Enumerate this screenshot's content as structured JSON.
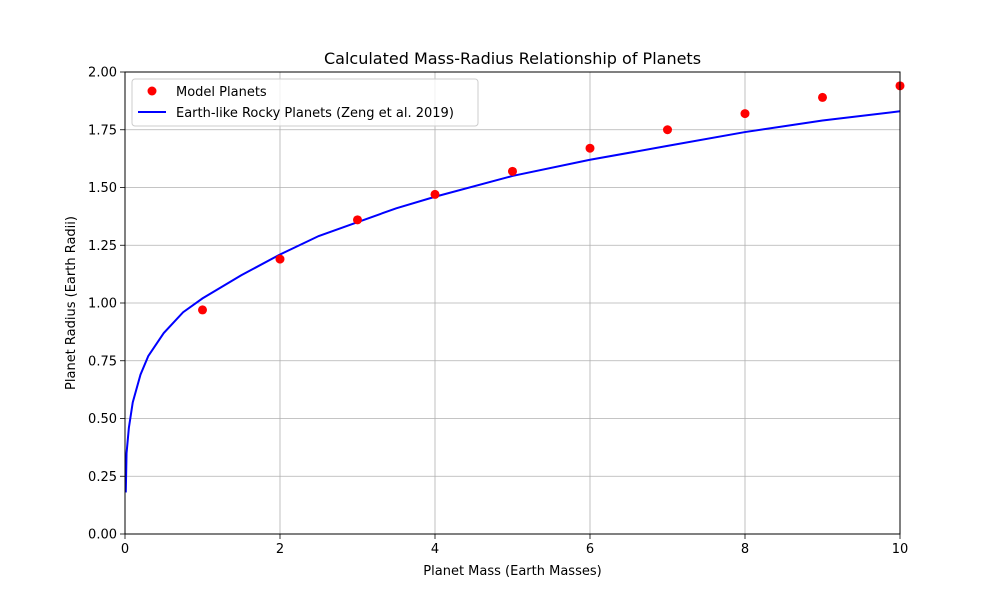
{
  "chart_data": {
    "type": "scatter",
    "title": "Calculated Mass-Radius Relationship of Planets",
    "xlabel": "Planet Mass (Earth Masses)",
    "ylabel": "Planet Radius (Earth Radii)",
    "xlim": [
      0,
      10
    ],
    "ylim": [
      0,
      2
    ],
    "xticks": [
      0,
      2,
      4,
      6,
      8,
      10
    ],
    "xtick_labels": [
      "0",
      "2",
      "4",
      "6",
      "8",
      "10"
    ],
    "yticks": [
      0,
      0.25,
      0.5,
      0.75,
      1,
      1.25,
      1.5,
      1.75,
      2
    ],
    "ytick_labels": [
      "0.00",
      "0.25",
      "0.50",
      "0.75",
      "1.00",
      "1.25",
      "1.50",
      "1.75",
      "2.00"
    ],
    "grid": true,
    "legend_position": "top-left",
    "series": [
      {
        "name": "Model Planets",
        "kind": "scatter",
        "color": "#ff0000",
        "x": [
          1,
          2,
          3,
          4,
          5,
          6,
          7,
          8,
          9,
          10
        ],
        "y": [
          0.97,
          1.19,
          1.36,
          1.47,
          1.57,
          1.67,
          1.75,
          1.82,
          1.89,
          1.94
        ]
      },
      {
        "name": "Earth-like Rocky Planets (Zeng et al. 2019)",
        "kind": "line",
        "color": "#0000ff",
        "x": [
          0.01,
          0.02,
          0.05,
          0.1,
          0.2,
          0.3,
          0.5,
          0.75,
          1,
          1.5,
          2,
          2.5,
          3,
          3.5,
          4,
          5,
          6,
          7,
          8,
          9,
          10
        ],
        "y": [
          0.18,
          0.35,
          0.46,
          0.57,
          0.69,
          0.77,
          0.87,
          0.96,
          1.02,
          1.12,
          1.21,
          1.29,
          1.35,
          1.41,
          1.46,
          1.55,
          1.62,
          1.68,
          1.74,
          1.79,
          1.83
        ]
      }
    ]
  }
}
